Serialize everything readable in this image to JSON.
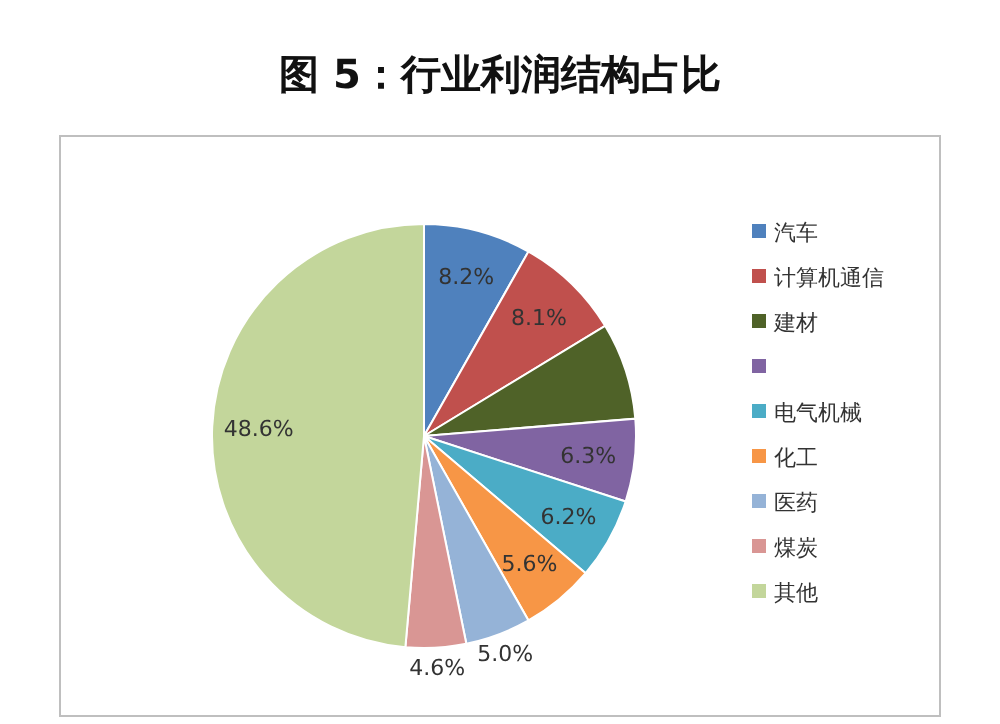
{
  "chart_data": {
    "type": "pie",
    "title": "图 5：行业利润结构占比",
    "categories": [
      "汽车",
      "计算机通信",
      "建材",
      null,
      "电气机械",
      "化工",
      "医药",
      "煤炭",
      "其他"
    ],
    "values": [
      8.2,
      8.1,
      7.4,
      6.3,
      6.2,
      5.6,
      5.0,
      4.6,
      48.6
    ],
    "colors": [
      "#4f81bd",
      "#c0504d",
      "#4f6228",
      "#8064a2",
      "#4bacc6",
      "#f79646",
      "#95b3d7",
      "#d99694",
      "#c3d69b"
    ],
    "value_labels": [
      "8.2%",
      "8.1%",
      null,
      "6.3%",
      "6.2%",
      "5.6%",
      "5.0%",
      "4.6%",
      "48.6%"
    ],
    "legend": "right"
  }
}
